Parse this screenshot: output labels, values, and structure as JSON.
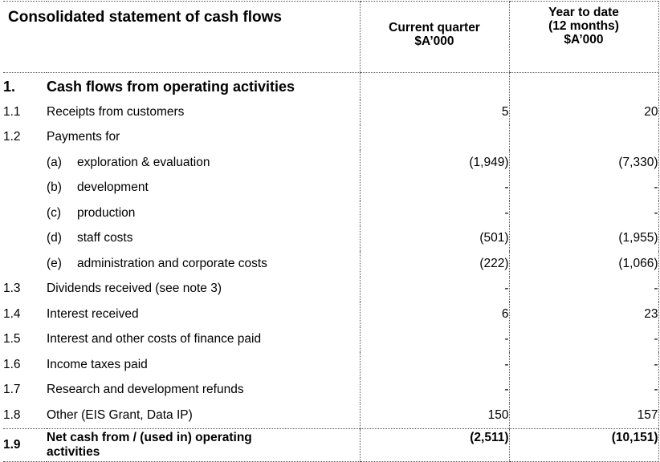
{
  "header": {
    "title": "Consolidated statement of cash flows",
    "current_quarter": [
      "Current quarter",
      "$A’000"
    ],
    "year_to_date": [
      "Year to date",
      "(12 months)",
      "$A’000"
    ]
  },
  "section": {
    "number": "1.",
    "label": "Cash flows from operating activities"
  },
  "rows": [
    {
      "num": "1.1",
      "sub": "",
      "label": "Receipts from customers",
      "current": "5",
      "ytd": "20"
    },
    {
      "num": "1.2",
      "sub": "",
      "label": "Payments for",
      "current": "",
      "ytd": ""
    },
    {
      "num": "",
      "sub": "(a)",
      "label": "exploration & evaluation",
      "current": "(1,949)",
      "ytd": "(7,330)"
    },
    {
      "num": "",
      "sub": "(b)",
      "label": "development",
      "current": "-",
      "ytd": "-"
    },
    {
      "num": "",
      "sub": "(c)",
      "label": "production",
      "current": "-",
      "ytd": "-"
    },
    {
      "num": "",
      "sub": "(d)",
      "label": "staff costs",
      "current": "(501)",
      "ytd": "(1,955)"
    },
    {
      "num": "",
      "sub": "(e)",
      "label": "administration and corporate costs",
      "current": "(222)",
      "ytd": "(1,066)"
    },
    {
      "num": "1.3",
      "sub": "",
      "label": "Dividends received (see note 3)",
      "current": "-",
      "ytd": "-"
    },
    {
      "num": "1.4",
      "sub": "",
      "label": "Interest received",
      "current": "6",
      "ytd": "23"
    },
    {
      "num": "1.5",
      "sub": "",
      "label": "Interest and other costs of finance paid",
      "current": "-",
      "ytd": "-"
    },
    {
      "num": "1.6",
      "sub": "",
      "label": "Income taxes paid",
      "current": "-",
      "ytd": "-"
    },
    {
      "num": "1.7",
      "sub": "",
      "label": "Research and development refunds",
      "current": "-",
      "ytd": "-"
    },
    {
      "num": "1.8",
      "sub": "",
      "label": "Other (EIS Grant, Data IP)",
      "current": "150",
      "ytd": "157"
    }
  ],
  "total": {
    "number": "1.9",
    "label_line1": "Net cash from / (used in) operating",
    "label_line2": "activities",
    "current": "(2,511)",
    "ytd": "(10,151)"
  }
}
